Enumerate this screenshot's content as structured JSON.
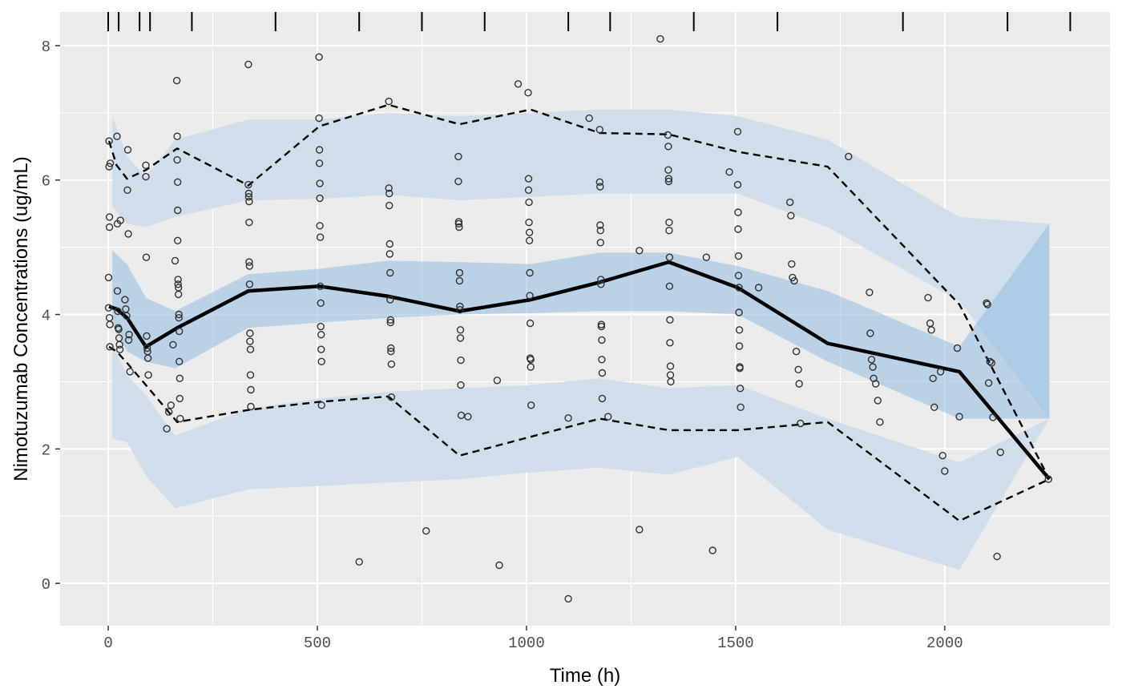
{
  "chart_data": {
    "type": "scatter",
    "title": "",
    "xlabel": "Time (h)",
    "ylabel": "Nimotuzumab Concentrations (ug/mL)",
    "xlim": [
      -115,
      2395
    ],
    "ylim": [
      -0.63,
      8.5
    ],
    "xticks": [
      0,
      500,
      1000,
      1500,
      2000
    ],
    "yticks": [
      0,
      2,
      4,
      6,
      8
    ],
    "grid": true,
    "legend": "none",
    "colors": {
      "panel": "#EBEBEB",
      "grid": "#FFFFFF",
      "outer_band": "#CFDEEA",
      "median_band": "#9ABFE3",
      "points": "#333333",
      "lines": "#000000"
    },
    "bin_edges": [
      0,
      25,
      75,
      100,
      200,
      400,
      600,
      750,
      900,
      1100,
      1200,
      1400,
      1600,
      1900,
      2150,
      2300
    ],
    "bands": {
      "x": [
        10,
        45,
        90,
        160,
        335,
        505,
        670,
        840,
        1010,
        1175,
        1340,
        1505,
        1720,
        2035,
        2250
      ],
      "lower_pi_low": [
        2.15,
        2.1,
        1.6,
        1.12,
        1.4,
        1.45,
        1.5,
        1.55,
        1.65,
        1.72,
        1.62,
        1.88,
        0.8,
        0.2,
        2.45
      ],
      "lower_pi_high": [
        3.55,
        3.1,
        2.8,
        2.2,
        2.6,
        2.75,
        2.85,
        2.9,
        2.95,
        3.05,
        2.9,
        2.95,
        2.45,
        1.8,
        2.45
      ],
      "median_pi_low": [
        3.85,
        3.45,
        3.3,
        3.2,
        3.8,
        3.88,
        3.95,
        4.0,
        4.02,
        4.05,
        4.05,
        4.0,
        3.3,
        2.45,
        2.45
      ],
      "median_pi_high": [
        4.95,
        4.75,
        4.25,
        4.05,
        4.6,
        4.68,
        4.8,
        4.78,
        4.75,
        4.92,
        4.92,
        4.72,
        4.35,
        3.52,
        5.35
      ],
      "upper_pi_low": [
        5.6,
        5.35,
        5.3,
        5.45,
        5.7,
        5.72,
        5.78,
        5.7,
        5.75,
        5.8,
        5.8,
        5.8,
        5.3,
        4.2,
        2.45
      ],
      "upper_pi_high": [
        6.95,
        6.35,
        6.05,
        6.6,
        6.9,
        6.9,
        7.0,
        6.95,
        7.0,
        7.05,
        7.05,
        6.95,
        6.6,
        5.45,
        5.35
      ]
    },
    "series": [
      {
        "style": "solid",
        "x": [
          2,
          20,
          45,
          90,
          165,
          335,
          505,
          670,
          840,
          1010,
          1175,
          1340,
          1505,
          1720,
          2035,
          2250
        ],
        "y": [
          4.12,
          4.08,
          3.95,
          3.52,
          3.8,
          4.35,
          4.42,
          4.27,
          4.05,
          4.22,
          4.48,
          4.78,
          4.4,
          3.57,
          3.15,
          1.55
        ]
      },
      {
        "style": "dashed",
        "x": [
          2,
          20,
          45,
          90,
          165,
          335,
          505,
          670,
          840,
          1010,
          1175,
          1340,
          1505,
          1720,
          2035,
          2250
        ],
        "y": [
          6.58,
          6.22,
          6.02,
          6.15,
          6.47,
          5.92,
          6.8,
          7.12,
          6.83,
          7.05,
          6.7,
          6.68,
          6.42,
          6.2,
          4.15,
          1.55
        ]
      },
      {
        "style": "dashed",
        "x": [
          2,
          20,
          45,
          90,
          165,
          335,
          505,
          670,
          840,
          1010,
          1175,
          1340,
          1505,
          1720,
          2035,
          2250
        ],
        "y": [
          3.52,
          3.45,
          3.28,
          2.95,
          2.4,
          2.58,
          2.7,
          2.78,
          1.9,
          2.18,
          2.45,
          2.28,
          2.28,
          2.4,
          0.93,
          1.55
        ]
      }
    ],
    "points": {
      "x": [
        1,
        1,
        2,
        2,
        3,
        3,
        3,
        4,
        4,
        5,
        21,
        22,
        22,
        23,
        24,
        25,
        26,
        27,
        28,
        29,
        40,
        42,
        44,
        46,
        47,
        48,
        49,
        50,
        52,
        90,
        90,
        91,
        92,
        93,
        94,
        95,
        96,
        164,
        165,
        165,
        166,
        166,
        166,
        167,
        167,
        168,
        168,
        169,
        169,
        170,
        170,
        171,
        171,
        172,
        335,
        335,
        336,
        336,
        337,
        337,
        337,
        338,
        338,
        339,
        339,
        340,
        340,
        341,
        341,
        504,
        504,
        505,
        505,
        506,
        506,
        506,
        507,
        507,
        508,
        508,
        509,
        509,
        510,
        510,
        671,
        671,
        672,
        672,
        673,
        673,
        674,
        674,
        675,
        675,
        676,
        676,
        677,
        677,
        837,
        837,
        838,
        838,
        839,
        840,
        840,
        841,
        841,
        842,
        842,
        843,
        843,
        844,
        1004,
        1005,
        1005,
        1006,
        1006,
        1007,
        1007,
        1008,
        1008,
        1009,
        1009,
        1010,
        1010,
        1011,
        1175,
        1175,
        1176,
        1176,
        1177,
        1177,
        1178,
        1178,
        1179,
        1179,
        1180,
        1180,
        1181,
        1181,
        1338,
        1339,
        1339,
        1340,
        1340,
        1341,
        1341,
        1342,
        1342,
        1343,
        1343,
        1344,
        1344,
        1345,
        1505,
        1505,
        1506,
        1506,
        1507,
        1507,
        1508,
        1508,
        1509,
        1509,
        1510,
        1510,
        1511,
        1512,
        1630,
        1632,
        1634,
        1636,
        1640,
        1645,
        1650,
        1652,
        1655,
        1820,
        1822,
        1825,
        1828,
        1830,
        1835,
        1840,
        1845,
        1960,
        1965,
        1968,
        1972,
        1975,
        1990,
        1995,
        2000,
        2030,
        2035,
        2100,
        2102,
        2105,
        2108,
        2112,
        2115,
        2125,
        2133,
        2248,
        140,
        145,
        150,
        155,
        160,
        760,
        600,
        935,
        1100,
        1270,
        1445,
        1320,
        1485,
        1770,
        1555,
        1150,
        1195,
        1100,
        930,
        860,
        980,
        1270,
        1430
      ],
      "y": [
        4.55,
        4.1,
        6.58,
        6.2,
        5.45,
        5.3,
        3.95,
        3.85,
        3.52,
        6.25,
        6.65,
        5.35,
        4.35,
        4.05,
        3.8,
        3.78,
        3.65,
        3.55,
        3.48,
        5.4,
        4.22,
        4.08,
        3.98,
        5.85,
        6.45,
        5.2,
        3.62,
        3.7,
        3.15,
        6.22,
        6.05,
        4.85,
        3.68,
        3.5,
        3.45,
        3.35,
        3.1,
        7.48,
        6.65,
        6.3,
        5.97,
        5.55,
        5.1,
        4.52,
        4.45,
        4.4,
        4.3,
        4.0,
        3.95,
        3.75,
        3.3,
        3.05,
        2.75,
        2.45,
        7.72,
        5.93,
        5.8,
        5.75,
        5.68,
        5.37,
        4.78,
        4.72,
        4.45,
        3.72,
        3.6,
        3.48,
        3.1,
        2.88,
        2.63,
        7.83,
        6.92,
        6.45,
        6.25,
        5.95,
        5.73,
        5.32,
        5.15,
        4.42,
        4.17,
        3.82,
        3.7,
        3.48,
        3.3,
        2.65,
        7.17,
        5.88,
        5.8,
        5.62,
        5.05,
        4.9,
        4.62,
        4.22,
        3.92,
        3.88,
        3.5,
        3.45,
        3.26,
        2.77,
        6.35,
        5.98,
        5.38,
        5.35,
        5.3,
        4.62,
        4.5,
        4.12,
        4.07,
        3.77,
        3.65,
        3.32,
        2.95,
        2.5,
        7.3,
        6.02,
        5.85,
        5.67,
        5.37,
        5.22,
        5.1,
        4.62,
        4.28,
        3.87,
        3.35,
        3.33,
        3.22,
        2.65,
        6.75,
        5.97,
        5.9,
        5.33,
        5.25,
        5.07,
        4.52,
        4.45,
        3.85,
        3.82,
        3.62,
        3.33,
        3.13,
        2.75,
        6.67,
        6.5,
        6.15,
        6.02,
        5.98,
        5.37,
        5.25,
        4.85,
        4.42,
        3.92,
        3.58,
        3.23,
        3.1,
        3.0,
        6.72,
        5.93,
        5.52,
        5.27,
        4.87,
        4.58,
        4.4,
        4.03,
        3.77,
        3.53,
        3.22,
        3.2,
        2.9,
        2.62,
        5.67,
        5.47,
        4.75,
        4.55,
        4.5,
        3.45,
        3.18,
        2.97,
        2.38,
        4.33,
        3.72,
        3.33,
        3.22,
        3.05,
        2.97,
        2.72,
        2.4,
        4.25,
        3.87,
        3.77,
        3.05,
        2.62,
        3.15,
        1.9,
        1.67,
        3.5,
        2.48,
        4.17,
        4.15,
        2.98,
        3.3,
        3.28,
        2.47,
        0.4,
        1.95,
        1.55,
        2.3,
        2.55,
        2.65,
        3.55,
        4.8,
        0.78,
        0.32,
        0.27,
        -0.23,
        0.8,
        0.49,
        8.1,
        6.12,
        6.35,
        4.4,
        6.92,
        2.48,
        2.46,
        3.02,
        2.48,
        7.43,
        4.95,
        4.85
      ]
    }
  }
}
